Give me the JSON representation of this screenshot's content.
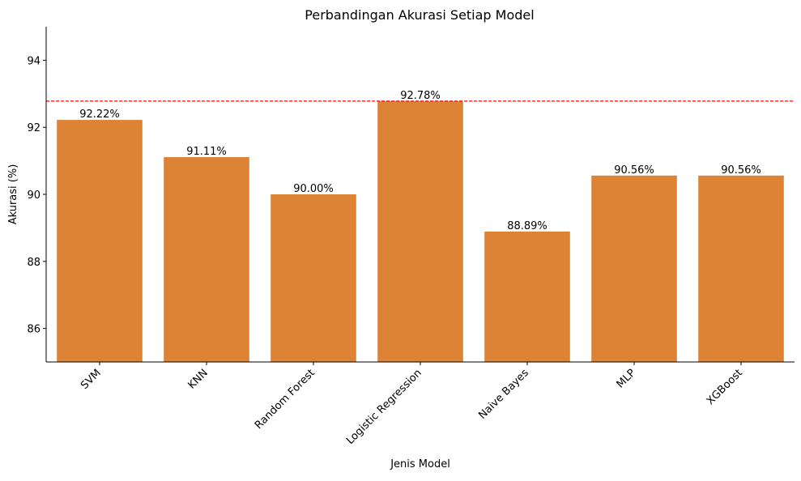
{
  "chart_data": {
    "type": "bar",
    "title": "Perbandingan Akurasi Setiap Model",
    "xlabel": "Jenis Model",
    "ylabel": "Akurasi (%)",
    "categories": [
      "SVM",
      "KNN",
      "Random Forest",
      "Logistic Regression",
      "Naive Bayes",
      "MLP",
      "XGBoost"
    ],
    "values": [
      92.22,
      91.11,
      90.0,
      92.78,
      88.89,
      90.56,
      90.56
    ],
    "data_labels": [
      "92.22%",
      "91.11%",
      "90.00%",
      "92.78%",
      "88.89%",
      "90.56%",
      "90.56%"
    ],
    "ylim": [
      85,
      95
    ],
    "yticks": [
      86,
      88,
      90,
      92,
      94
    ],
    "reference_line": {
      "value": 92.78,
      "style": "dashed",
      "color": "#ff0000"
    },
    "bar_color": "#dc8335",
    "grid": false,
    "legend": "none"
  }
}
